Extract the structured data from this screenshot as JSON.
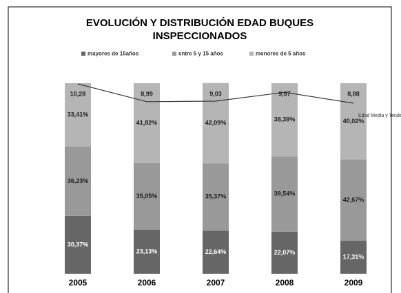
{
  "chart_data": {
    "type": "stacked_bar_line",
    "title": [
      "EVOLUCIÓN Y DISTRIBUCIÓN EDAD BUQUES",
      "INSPECCIONADOS"
    ],
    "categories": [
      "2005",
      "2006",
      "2007",
      "2008",
      "2009"
    ],
    "series": [
      {
        "name": "mayores de 15años",
        "color": "#666666",
        "values": [
          30.37,
          23.13,
          22.64,
          22.07,
          17.31
        ],
        "value_labels": [
          "30,37%",
          "23,13%",
          "22,64%",
          "22,07%",
          "17,31%"
        ]
      },
      {
        "name": "entre 5 y 15 años",
        "color": "#999999",
        "values": [
          36.23,
          35.05,
          35.37,
          39.54,
          42.67
        ],
        "value_labels": [
          "36,23%",
          "35,05%",
          "35,37%",
          "39,54%",
          "42,67%"
        ]
      },
      {
        "name": "menores de 5 años",
        "color": "#b5b5b5",
        "values": [
          33.41,
          41.82,
          42.09,
          38.39,
          40.02
        ],
        "value_labels": [
          "33,41%",
          "41,82%",
          "42,09%",
          "38,39%",
          "40,02%"
        ]
      },
      {
        "name": "Edad Media y Tendencia",
        "color": "#333333",
        "axis": "y2",
        "values": [
          10.28,
          8.99,
          9.03,
          9.67,
          8.88
        ],
        "value_labels": [
          "10,28",
          "8,99",
          "9,03",
          "9,67",
          "8,88"
        ]
      }
    ],
    "ylim": [
      0,
      100
    ]
  }
}
